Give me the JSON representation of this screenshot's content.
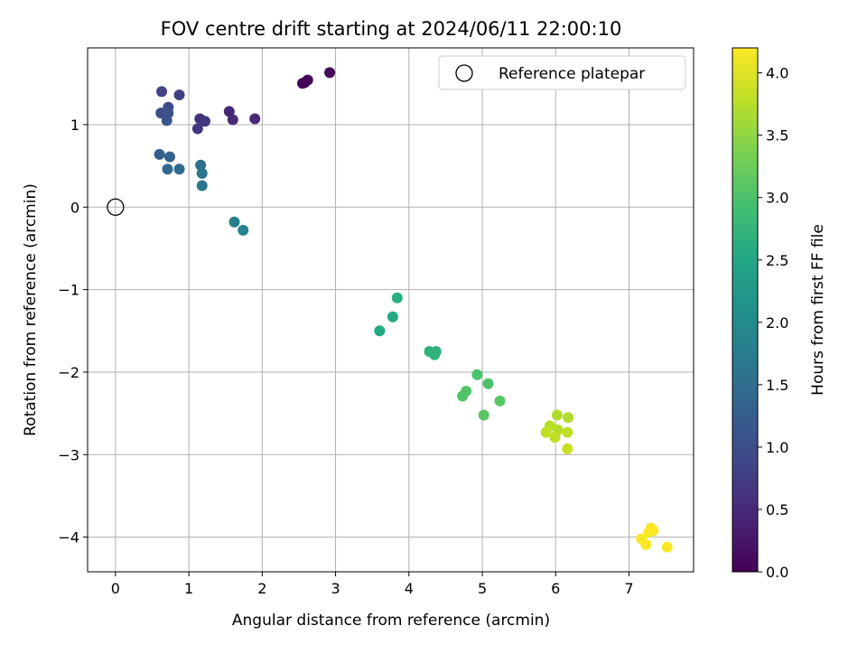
{
  "chart_data": {
    "type": "scatter",
    "title": "FOV centre drift starting at 2024/06/11 22:00:10",
    "xlabel": "Angular distance from reference (arcmin)",
    "ylabel": "Rotation from reference (arcmin)",
    "xlim": [
      -0.38,
      7.88
    ],
    "ylim": [
      -4.42,
      1.93
    ],
    "xticks": [
      0,
      1,
      2,
      3,
      4,
      5,
      6,
      7
    ],
    "yticks": [
      -4,
      -3,
      -2,
      -1,
      0,
      1
    ],
    "grid": true,
    "legend": {
      "position": "top-right",
      "entries": [
        "Reference platepar"
      ]
    },
    "reference_point": {
      "x": 0,
      "y": 0,
      "label": "Reference platepar"
    },
    "colorbar": {
      "label": "Hours from first FF file",
      "range": [
        0.0,
        4.2
      ],
      "ticks": [
        "0.0",
        "0.5",
        "1.0",
        "1.5",
        "2.0",
        "2.5",
        "3.0",
        "3.5",
        "4.0"
      ],
      "colormap": "viridis"
    },
    "series": [
      {
        "points": [
          {
            "x": 2.55,
            "y": 1.5,
            "c": 0.0
          },
          {
            "x": 2.58,
            "y": 1.51,
            "c": 0.03
          },
          {
            "x": 2.62,
            "y": 1.54,
            "c": 0.06
          },
          {
            "x": 2.92,
            "y": 1.63,
            "c": 0.1
          },
          {
            "x": 1.55,
            "y": 1.16,
            "c": 0.45
          },
          {
            "x": 1.6,
            "y": 1.06,
            "c": 0.5
          },
          {
            "x": 1.9,
            "y": 1.07,
            "c": 0.5
          },
          {
            "x": 1.15,
            "y": 1.07,
            "c": 0.6
          },
          {
            "x": 1.22,
            "y": 1.04,
            "c": 0.65
          },
          {
            "x": 1.12,
            "y": 0.95,
            "c": 0.7
          },
          {
            "x": 0.87,
            "y": 1.36,
            "c": 0.8
          },
          {
            "x": 0.63,
            "y": 1.4,
            "c": 0.85
          },
          {
            "x": 0.72,
            "y": 1.21,
            "c": 0.95
          },
          {
            "x": 0.62,
            "y": 1.14,
            "c": 1.0
          },
          {
            "x": 0.72,
            "y": 1.14,
            "c": 1.05
          },
          {
            "x": 0.7,
            "y": 1.05,
            "c": 1.1
          },
          {
            "x": 0.6,
            "y": 0.64,
            "c": 1.25
          },
          {
            "x": 0.74,
            "y": 0.61,
            "c": 1.3
          },
          {
            "x": 0.71,
            "y": 0.46,
            "c": 1.4
          },
          {
            "x": 0.87,
            "y": 0.46,
            "c": 1.45
          },
          {
            "x": 1.16,
            "y": 0.51,
            "c": 1.55
          },
          {
            "x": 1.18,
            "y": 0.41,
            "c": 1.6
          },
          {
            "x": 1.18,
            "y": 0.26,
            "c": 1.65
          },
          {
            "x": 1.62,
            "y": -0.18,
            "c": 1.8
          },
          {
            "x": 1.74,
            "y": -0.28,
            "c": 1.85
          },
          {
            "x": 3.6,
            "y": -1.5,
            "c": 2.55
          },
          {
            "x": 3.78,
            "y": -1.33,
            "c": 2.55
          },
          {
            "x": 3.84,
            "y": -1.1,
            "c": 2.6
          },
          {
            "x": 4.28,
            "y": -1.75,
            "c": 2.65
          },
          {
            "x": 4.35,
            "y": -1.79,
            "c": 2.7
          },
          {
            "x": 4.37,
            "y": -1.75,
            "c": 2.7
          },
          {
            "x": 4.93,
            "y": -2.03,
            "c": 3.0
          },
          {
            "x": 5.08,
            "y": -2.14,
            "c": 3.0
          },
          {
            "x": 4.78,
            "y": -2.23,
            "c": 3.05
          },
          {
            "x": 4.73,
            "y": -2.29,
            "c": 3.05
          },
          {
            "x": 5.24,
            "y": -2.35,
            "c": 3.1
          },
          {
            "x": 5.02,
            "y": -2.52,
            "c": 3.1
          },
          {
            "x": 6.02,
            "y": -2.52,
            "c": 3.7
          },
          {
            "x": 6.17,
            "y": -2.55,
            "c": 3.7
          },
          {
            "x": 5.92,
            "y": -2.65,
            "c": 3.75
          },
          {
            "x": 6.03,
            "y": -2.7,
            "c": 3.75
          },
          {
            "x": 6.16,
            "y": -2.73,
            "c": 3.8
          },
          {
            "x": 5.87,
            "y": -2.73,
            "c": 3.8
          },
          {
            "x": 5.99,
            "y": -2.79,
            "c": 3.8
          },
          {
            "x": 6.16,
            "y": -2.93,
            "c": 3.85
          },
          {
            "x": 7.17,
            "y": -4.02,
            "c": 4.15
          },
          {
            "x": 7.3,
            "y": -3.89,
            "c": 4.15
          },
          {
            "x": 7.27,
            "y": -3.94,
            "c": 4.18
          },
          {
            "x": 7.33,
            "y": -3.92,
            "c": 4.18
          },
          {
            "x": 7.23,
            "y": -4.09,
            "c": 4.2
          },
          {
            "x": 7.52,
            "y": -4.12,
            "c": 4.2
          }
        ]
      }
    ]
  }
}
